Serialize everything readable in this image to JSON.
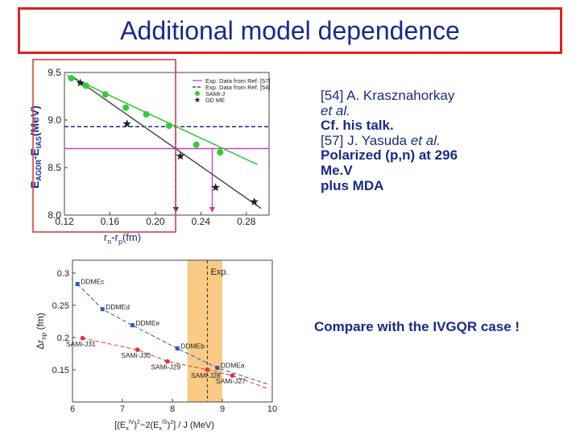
{
  "slide": {
    "title": "Additional model dependence",
    "references": [
      {
        "pre": "[54] A. Krasznahorkay",
        "ital": "",
        "bold": false
      },
      {
        "pre": "",
        "ital": "et al.",
        "bold": false
      },
      {
        "pre": "Cf. his talk.",
        "ital": "",
        "bold": true
      },
      {
        "pre": "[57] J. Yasuda ",
        "ital": "et al.",
        "bold": false
      },
      {
        "pre": "Polarized (p,n) at 296",
        "ital": "",
        "bold": true
      },
      {
        "pre": "Me.V",
        "ital": "",
        "bold": true
      },
      {
        "pre": "plus MDA",
        "ital": "",
        "bold": true
      }
    ],
    "compare_text": "Compare with the IVGQR case !"
  },
  "chart_data": [
    {
      "type": "scatter",
      "title": "",
      "ylabel_html": [
        "E",
        "AGDR",
        "-E",
        "IAS",
        "(MeV)"
      ],
      "xlabel_parts": [
        "r",
        "n",
        "-r",
        "p",
        "(fm)"
      ],
      "xlim": [
        0.12,
        0.3
      ],
      "ylim": [
        8.0,
        9.5
      ],
      "xticks": [
        0.12,
        0.16,
        0.2,
        0.24,
        0.28
      ],
      "xtick_labels": [
        "0.12",
        "0.16",
        "0.20",
        "0.24",
        "0.28"
      ],
      "yticks": [
        8.0,
        8.5,
        9.0,
        9.5
      ],
      "ytick_labels": [
        "8.0",
        "8.5",
        "9.0",
        "9.5"
      ],
      "legend_position": "top-right",
      "series": [
        {
          "name": "SAMi-J",
          "marker": "circle",
          "color": "#33cc33",
          "x": [
            0.126,
            0.139,
            0.156,
            0.174,
            0.192,
            0.212,
            0.236,
            0.257
          ],
          "y": [
            9.44,
            9.36,
            9.27,
            9.13,
            9.06,
            8.94,
            8.74,
            8.66
          ]
        },
        {
          "name": "DD ME",
          "marker": "star",
          "color": "#222222",
          "x": [
            0.134,
            0.175,
            0.222,
            0.253,
            0.287
          ],
          "y": [
            9.39,
            8.96,
            8.62,
            8.29,
            8.14
          ]
        }
      ],
      "fit_lines": [
        {
          "series": "SAMi-J",
          "color": "#33cc33",
          "x": [
            0.122,
            0.29
          ],
          "y": [
            9.47,
            8.53
          ]
        },
        {
          "series": "DD ME",
          "color": "#555555",
          "x": [
            0.128,
            0.293
          ],
          "y": [
            9.45,
            8.07
          ]
        }
      ],
      "reference_lines": [
        {
          "name": "Exp. Data from Ref. [57]",
          "color": "#cc33cc",
          "style": "solid",
          "y_value": 8.7,
          "x_value": 0.25
        },
        {
          "name": "Exp. Data from Ref. [54]",
          "color": "#1a2a8a",
          "style": "dashed",
          "y_value": 8.93,
          "x_value": 0.218
        }
      ],
      "colors": {
        "highlight_border": "#d64040"
      }
    },
    {
      "type": "scatter",
      "title": "",
      "ylabel_parts": [
        "Δr",
        "np",
        " (fm)"
      ],
      "xlabel_parts": [
        "[(E",
        "x",
        "IV",
        ")",
        "2",
        "−2(E",
        "x",
        "IS",
        ")",
        "2",
        "] / J (MeV)"
      ],
      "xlim": [
        6,
        10
      ],
      "ylim": [
        0.1,
        0.32
      ],
      "xticks": [
        6,
        7,
        8,
        9,
        10
      ],
      "xtick_labels": [
        "6",
        "7",
        "8",
        "9",
        "10"
      ],
      "yticks": [
        0.15,
        0.2,
        0.25,
        0.3
      ],
      "ytick_labels": [
        "0.15",
        "0.2",
        "0.25",
        "0.3"
      ],
      "exp_band": {
        "label": "Exp.",
        "x_range": [
          8.3,
          9.0
        ],
        "center": 8.7,
        "color": "#f5a020"
      },
      "series": [
        {
          "name": "DDME",
          "color": "#3355bb",
          "marker": "square",
          "points": [
            {
              "label": "DDMEc",
              "x": 6.1,
              "y": 0.283
            },
            {
              "label": "DDMEd",
              "x": 6.6,
              "y": 0.244
            },
            {
              "label": "DDMEe",
              "x": 7.2,
              "y": 0.219
            },
            {
              "label": "DDMEb",
              "x": 8.1,
              "y": 0.183
            },
            {
              "label": "DDMEa",
              "x": 8.9,
              "y": 0.153
            }
          ]
        },
        {
          "name": "SAMi",
          "color": "#dd3333",
          "marker": "circle",
          "points": [
            {
              "label": "SAMi-J31",
              "x": 6.2,
              "y": 0.199
            },
            {
              "label": "SAMi-J30",
              "x": 7.3,
              "y": 0.181
            },
            {
              "label": "SAMi-J29",
              "x": 7.9,
              "y": 0.163
            },
            {
              "label": "SAMi-J28",
              "x": 8.7,
              "y": 0.15
            },
            {
              "label": "SAMi-J27",
              "x": 9.2,
              "y": 0.141
            }
          ]
        }
      ]
    }
  ]
}
